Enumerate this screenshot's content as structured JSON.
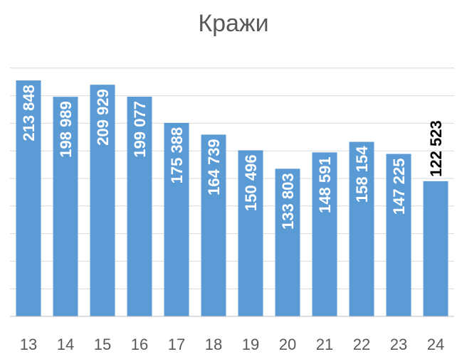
{
  "chart_data": {
    "type": "bar",
    "title": "Кражи",
    "xlabel": "",
    "ylabel": "",
    "categories": [
      "13",
      "14",
      "15",
      "16",
      "17",
      "18",
      "19",
      "20",
      "21",
      "22",
      "23",
      "24"
    ],
    "values": [
      213848,
      198989,
      209929,
      199077,
      175388,
      164739,
      150496,
      133803,
      148591,
      158154,
      147225,
      122523
    ],
    "data_labels": [
      "213 848",
      "198 989",
      "209 929",
      "199 077",
      "175 388",
      "164 739",
      "150 496",
      "133 803",
      "148 591",
      "158 154",
      "147 225",
      "122 523"
    ],
    "ylim": [
      0,
      250000
    ],
    "gridlines": [
      0,
      25000,
      50000,
      75000,
      100000,
      125000,
      150000,
      175000,
      200000,
      225000
    ],
    "grid": true,
    "y_axis_labels_shown": false,
    "colors": {
      "bar": "#5b9bd5",
      "label_inside": "#ffffff",
      "label_last": "#000000",
      "grid": "#d9d9d9",
      "axis": "#bfbfbf",
      "text": "#595959"
    }
  }
}
